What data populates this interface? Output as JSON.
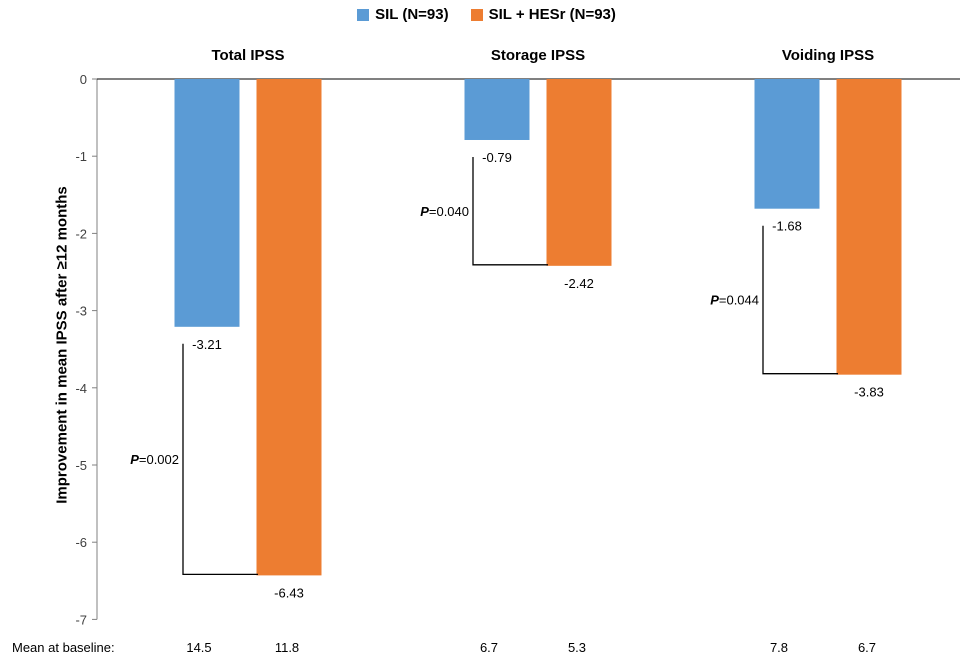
{
  "legend": [
    {
      "label": "SIL (N=93)",
      "color": "#5b9bd5"
    },
    {
      "label": "SIL + HESr (N=93)",
      "color": "#ed7d31"
    }
  ],
  "baseline_label": "Mean at baseline:",
  "chart_data": {
    "type": "bar",
    "categories": [
      "Total IPSS",
      "Storage IPSS",
      "Voiding IPSS"
    ],
    "series": [
      {
        "name": "SIL (N=93)",
        "color": "#5b9bd5",
        "values": [
          -3.21,
          -0.79,
          -1.68
        ]
      },
      {
        "name": "SIL + HESr (N=93)",
        "color": "#ed7d31",
        "values": [
          -6.43,
          -2.42,
          -3.83
        ]
      }
    ],
    "value_labels": [
      [
        "-3.21",
        "-6.43"
      ],
      [
        "-0.79",
        "-2.42"
      ],
      [
        "-1.68",
        "-3.83"
      ]
    ],
    "p_values": [
      "=0.002",
      "=0.040",
      "=0.044"
    ],
    "p_prefix": "P",
    "baseline": [
      [
        "14.5",
        "11.8"
      ],
      [
        "6.7",
        "5.3"
      ],
      [
        "7.8",
        "6.7"
      ]
    ],
    "ylabel": "Improvement in mean IPSS after ≥12 months",
    "ylim": [
      -7,
      0
    ],
    "yticks": [
      0,
      -1,
      -2,
      -3,
      -4,
      -5,
      -6,
      -7
    ],
    "legend_position": "top"
  }
}
